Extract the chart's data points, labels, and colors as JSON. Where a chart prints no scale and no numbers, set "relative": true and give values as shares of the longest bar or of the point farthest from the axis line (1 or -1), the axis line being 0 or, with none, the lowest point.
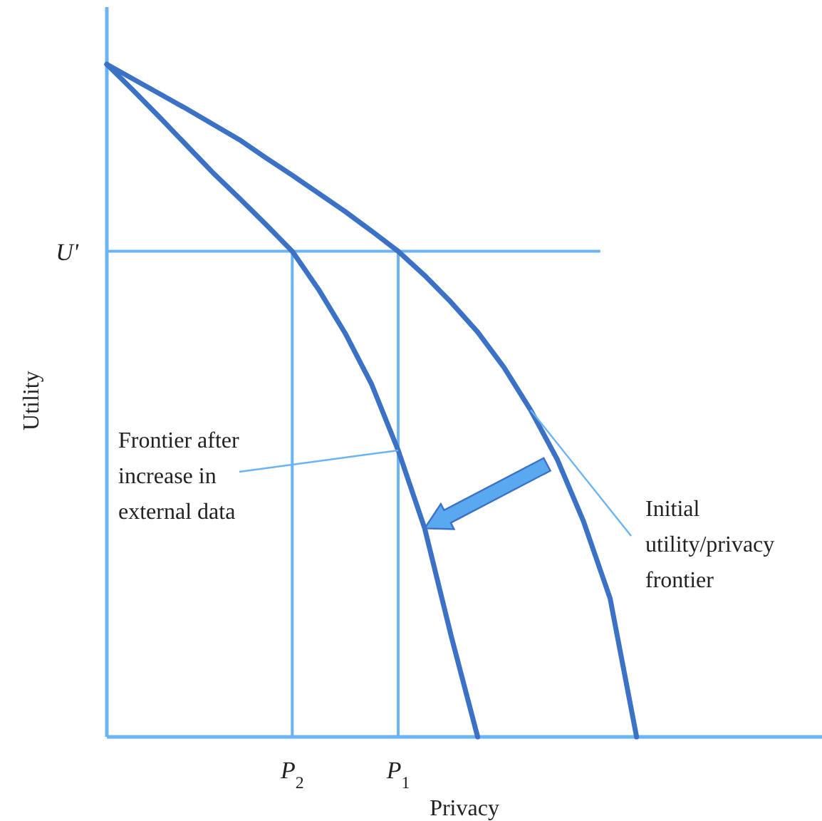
{
  "chart_data": {
    "type": "line",
    "relative": true,
    "xlabel": "Privacy",
    "ylabel": "Utility",
    "categories": [
      null,
      null,
      null,
      null,
      null,
      null,
      null,
      "P$_{2}$",
      null,
      null,
      null,
      "P$_{1}$",
      null,
      null,
      null,
      null,
      null,
      null,
      null,
      null,
      null,
      null,
      null,
      null,
      null,
      null,
      null,
      null
    ],
    "marker": "none",
    "line_style": "solid",
    "series": [
      {
        "color": "#3b72c6",
        "values": [
          1,
          0.978,
          0.956,
          0.934,
          0.911,
          0.888,
          0.861,
          0.835,
          0.808,
          0.781,
          0.752,
          0.722,
          0.686,
          0.646,
          0.602,
          0.549,
          0.486,
          0.413,
          0.32,
          0.206,
          0,
          null,
          null,
          null,
          null,
          null,
          null,
          null
        ]
      },
      {
        "color": "#3b72c6",
        "values": [
          1,
          0.961,
          0.921,
          0.88,
          0.839,
          0.801,
          0.762,
          0.722,
          0.665,
          0.6,
          0.524,
          0.426,
          0.31,
          0.15,
          0,
          null,
          null,
          null,
          null,
          null,
          null,
          null,
          null,
          null,
          null,
          null,
          null,
          null
        ]
      }
    ],
    "ref_lines": [
      {
        "axis": "y",
        "value": 0.722,
        "label": "U'",
        "color": "#6ab4f5"
      },
      {
        "axis": "x",
        "value": "P$_{2}$",
        "color": "#6ab4f5"
      },
      {
        "axis": "x",
        "value": "P$_{1}$",
        "color": "#6ab4f5"
      }
    ],
    "annotations": [
      "Initial utility/privacy frontier",
      "Frontier after increase in external data"
    ]
  }
}
